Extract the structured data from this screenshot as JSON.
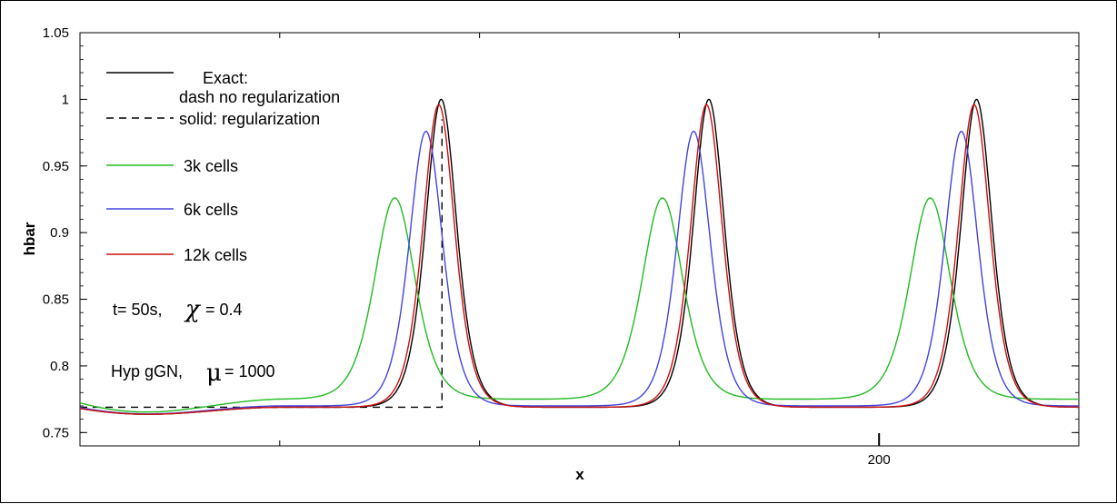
{
  "chart_data": {
    "type": "line",
    "title": "",
    "xlabel": "x",
    "ylabel": "hbar",
    "xlim": [
      100,
      225
    ],
    "ylim": [
      0.74,
      1.05
    ],
    "yticks": [
      0.75,
      0.8,
      0.85,
      0.9,
      0.95,
      1,
      1.05
    ],
    "ytick_labels": [
      "0.75",
      "0.8",
      "0.85",
      "0.9",
      "0.95",
      "1",
      "1.05"
    ],
    "xticks": [
      125,
      150,
      175,
      200
    ],
    "xtick_labels": [
      "",
      "",
      "",
      "200"
    ],
    "grid": false,
    "legend_position": "top-left",
    "legend_header": {
      "exact": "Exact:",
      "dash_note": "dash no regularization",
      "solid_note": "solid: regularization"
    },
    "annotations": {
      "time_prefix": "t= 50s,",
      "chi_symbol": "χ",
      "chi_value": "= 0.4",
      "model_prefix": "Hyp gGN,",
      "mu_symbol": "μ",
      "mu_value": "= 1000"
    },
    "series": [
      {
        "name": "",
        "legend_row": "exact",
        "color": "#000000",
        "style": "solid",
        "peaks": [
          [
            145.2,
            1.0
          ],
          [
            178.7,
            1.0
          ],
          [
            212.2,
            1.0
          ]
        ],
        "amplitude": 0.231,
        "base": 0.769,
        "width": 2.6
      },
      {
        "name": "",
        "legend_row": "dash",
        "color": "#000000",
        "style": "dash",
        "points": [
          [
            100,
            0.769
          ],
          [
            145.3,
            0.769
          ],
          [
            145.3,
            0.985
          ]
        ]
      },
      {
        "name": "3k cells",
        "color": "#22bb22",
        "style": "solid",
        "peaks": [
          [
            139.4,
            0.926
          ],
          [
            172.9,
            0.926
          ],
          [
            206.4,
            0.926
          ]
        ],
        "amplitude": 0.151,
        "base": 0.775,
        "width": 3.4
      },
      {
        "name": "6k cells",
        "color": "#4444dd",
        "style": "solid",
        "peaks": [
          [
            143.3,
            0.976
          ],
          [
            176.8,
            0.976
          ],
          [
            210.3,
            0.976
          ]
        ],
        "amplitude": 0.206,
        "base": 0.77,
        "width": 2.8
      },
      {
        "name": "12k cells",
        "color": "#cc1111",
        "style": "solid",
        "peaks": [
          [
            144.9,
            0.996
          ],
          [
            178.4,
            0.996
          ],
          [
            211.9,
            0.996
          ]
        ],
        "amplitude": 0.227,
        "base": 0.769,
        "width": 2.65
      }
    ]
  }
}
